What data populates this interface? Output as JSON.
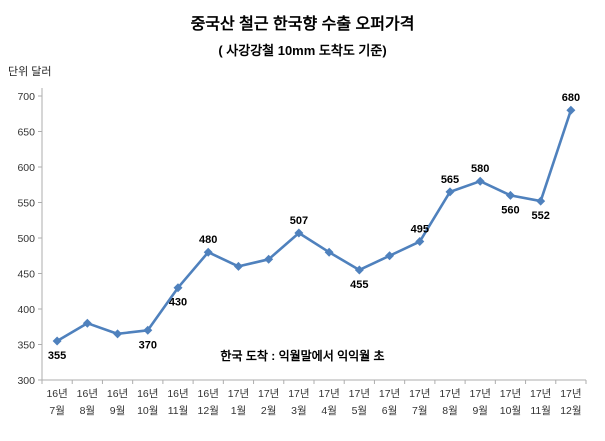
{
  "chart_data": {
    "type": "line",
    "title": "중국산 철근 한국향 수출 오퍼가격",
    "subtitle": "( 사강강철 10mm 도착도 기준)",
    "unit_label": "단위 달러",
    "annotation": "한국 도착 : 익월말에서 익익월 초",
    "categories_line1": [
      "16년",
      "16년",
      "16년",
      "16년",
      "16년",
      "16년",
      "17년",
      "17년",
      "17년",
      "17년",
      "17년",
      "17년",
      "17년",
      "17년",
      "17년",
      "17년",
      "17년",
      "17년"
    ],
    "categories_line2": [
      "7월",
      "8월",
      "9월",
      "10월",
      "11월",
      "12월",
      "1월",
      "2월",
      "3월",
      "4월",
      "5월",
      "6월",
      "7월",
      "8월",
      "9월",
      "10월",
      "11월",
      "12월"
    ],
    "values": [
      355,
      380,
      365,
      370,
      430,
      480,
      460,
      470,
      507,
      480,
      455,
      475,
      495,
      565,
      580,
      560,
      552,
      680
    ],
    "data_labels": [
      {
        "index": 0,
        "text": "355",
        "position": "below"
      },
      {
        "index": 3,
        "text": "370",
        "position": "below"
      },
      {
        "index": 4,
        "text": "430",
        "position": "below"
      },
      {
        "index": 5,
        "text": "480",
        "position": "above"
      },
      {
        "index": 8,
        "text": "507",
        "position": "above"
      },
      {
        "index": 10,
        "text": "455",
        "position": "below"
      },
      {
        "index": 12,
        "text": "495",
        "position": "above"
      },
      {
        "index": 13,
        "text": "565",
        "position": "above"
      },
      {
        "index": 14,
        "text": "580",
        "position": "above"
      },
      {
        "index": 15,
        "text": "560",
        "position": "below"
      },
      {
        "index": 16,
        "text": "552",
        "position": "below"
      },
      {
        "index": 17,
        "text": "680",
        "position": "above"
      }
    ],
    "ylim": [
      300,
      700
    ],
    "yticks": [
      300,
      350,
      400,
      450,
      500,
      550,
      600,
      650,
      700
    ],
    "grid": false,
    "legend": "none",
    "marker": "diamond",
    "line_color": "#4f81bd",
    "axis_color": "#adadad"
  }
}
